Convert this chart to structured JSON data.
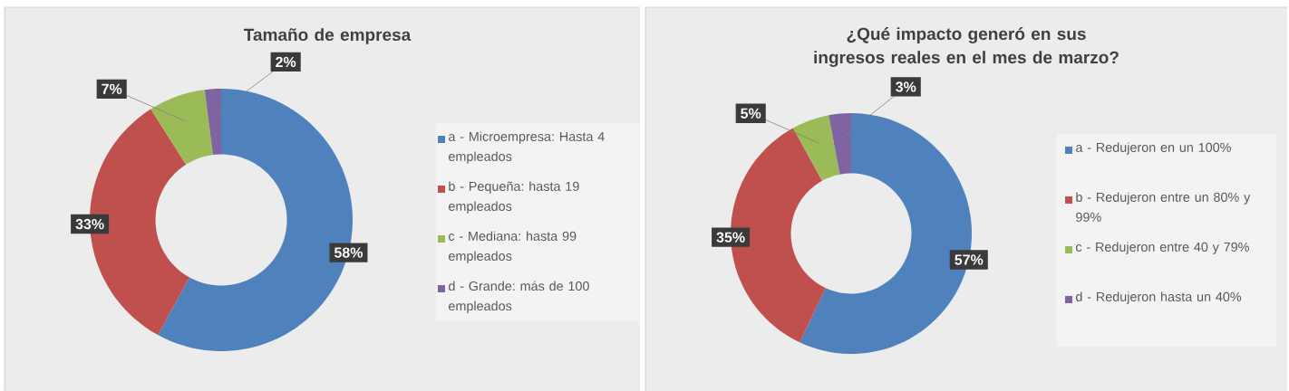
{
  "chart_data": [
    {
      "type": "donut",
      "title": "Tamaño de empresa",
      "categories": [
        "a - Microempresa: Hasta 4 empleados",
        "b - Pequeña: hasta 19 empleados",
        "c - Mediana: hasta 99 empleados",
        "d - Grande: más de 100 empleados"
      ],
      "values": [
        58,
        33,
        7,
        2
      ],
      "colors": [
        "#4f81bd",
        "#c0504d",
        "#9bbb59",
        "#8064a2"
      ],
      "value_labels": [
        "58%",
        "33%",
        "7%",
        "2%"
      ],
      "legend": "right"
    },
    {
      "type": "donut",
      "title": "¿Qué impacto generó en sus ingresos reales en el mes de marzo?",
      "categories": [
        "a - Redujeron en un 100%",
        "b - Redujeron entre un 80% y 99%",
        "c - Redujeron entre 40 y 79%",
        "d - Redujeron hasta un 40%"
      ],
      "values": [
        57,
        35,
        5,
        3
      ],
      "colors": [
        "#4f81bd",
        "#c0504d",
        "#9bbb59",
        "#8064a2"
      ],
      "value_labels": [
        "57%",
        "35%",
        "5%",
        "3%"
      ],
      "legend": "right"
    }
  ]
}
